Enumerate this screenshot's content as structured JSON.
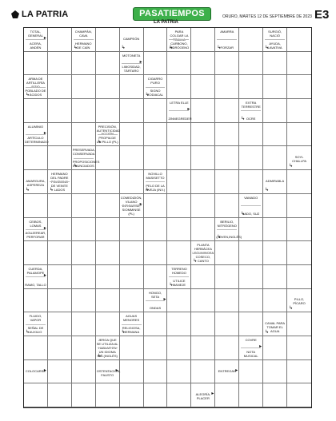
{
  "header": {
    "logo": "LA PATRIA",
    "title": "PASATIEMPOS",
    "title_sub": "LA PATRIA",
    "date": "ORURO, MARTES 12 DE SEPTIEMBRE DE 2023",
    "section": "E3"
  },
  "crossword": {
    "cols": 12,
    "rows": 16,
    "clues": [
      {
        "r": 0,
        "c": 0,
        "top": "TOTAL, GENERAL",
        "bot": "ACERA, ANDÉN",
        "arrow": "right"
      },
      {
        "r": 0,
        "c": 2,
        "top": "CHAMPÁN, CAVA",
        "bot": "HERMANO DE CAÍN",
        "arrow": "down"
      },
      {
        "r": 0,
        "c": 4,
        "top": "CAMPEÓN",
        "bot": "",
        "arrow": "down"
      },
      {
        "r": 0,
        "c": 6,
        "top": "PARA COLGAR LA TOALLA",
        "bot": "CARBONO, HIDRÓGENO",
        "arrow": "down"
      },
      {
        "r": 0,
        "c": 8,
        "top": "AMARRA",
        "bot": "FORZAR",
        "arrow": "down"
      },
      {
        "r": 0,
        "c": 10,
        "top": "SURGIÓ, NACIÓ",
        "bot": "AYUDA, LAVATIVA",
        "arrow": "down"
      },
      {
        "r": 1,
        "c": 4,
        "top": "MOTONETA",
        "bot": "LIMOSIDAD, TÁRTARO",
        "arrow": "right"
      },
      {
        "r": 2,
        "c": 0,
        "top": "ARMA DE ARTILLERÍA",
        "bot": "SITIO POBLADO DE ÁCIDOS",
        "arrow": "down"
      },
      {
        "r": 2,
        "c": 5,
        "top": "CIGARRO PURO",
        "bot": "SIGNO ZODIACAL",
        "arrow": "down"
      },
      {
        "r": 3,
        "c": 6,
        "top": "LETRA ELLE",
        "bot": "ZINNEGREDER",
        "arrow": "right"
      },
      {
        "r": 3,
        "c": 9,
        "top": "EXTRA TERRESTRE",
        "bot": "OCRE",
        "arrow": "down"
      },
      {
        "r": 4,
        "c": 0,
        "top": "ALUMINIO",
        "bot": "ARTÍCULO DETERMINADO",
        "arrow": "right"
      },
      {
        "r": 4,
        "c": 3,
        "top": "PRECISIÓN, AUTENTICIDAD",
        "bot": "ACCIÓN PROPIA DE UN PILLO (PL)",
        "arrow": "down"
      },
      {
        "r": 5,
        "c": 2,
        "top": "PRESERVADA, CONSERVADA",
        "bot": "PROPOSICIONES ENUNCIADOS",
        "arrow": "down"
      },
      {
        "r": 5,
        "c": 11,
        "top": "SOYL CHALLPA",
        "bot": "",
        "arrow": "down"
      },
      {
        "r": 6,
        "c": 0,
        "top": "AMARGURA, ASPEREZA",
        "bot": "",
        "arrow": "down"
      },
      {
        "r": 6,
        "c": 1,
        "top": "HERMANO DEL PADRE",
        "bot": "POLÍGONO DE VEINTE LADOS",
        "arrow": "down"
      },
      {
        "r": 6,
        "c": 5,
        "top": "NOVILLO MASISETTO",
        "bot": "PELO DE LA OVEJA (INV.)",
        "arrow": "down"
      },
      {
        "r": 6,
        "c": 10,
        "top": "ADMIRABLA",
        "bot": "",
        "arrow": "down"
      },
      {
        "r": 7,
        "c": 4,
        "top": "COMEDIZIÓN, VILANO",
        "bot": "DIFIGARSE, SIOMMINSE (PL)",
        "arrow": "right"
      },
      {
        "r": 7,
        "c": 9,
        "top": "VAMADO",
        "bot": "LADO, SUZ",
        "arrow": "down"
      },
      {
        "r": 8,
        "c": 0,
        "top": "CEIBOS, LOMAS",
        "bot": "AGUJEREAR, PERFORAR",
        "arrow": "right"
      },
      {
        "r": 8,
        "c": 8,
        "top": "BERILIO, NITRÓGENO",
        "bot": "(JOVEN,INGLÉS)",
        "arrow": "down"
      },
      {
        "r": 9,
        "c": 7,
        "top": "PLANTA HERBÁCEA LEGUMINOSA",
        "bot": "COSECO, CANTO",
        "arrow": "down"
      },
      {
        "r": 10,
        "c": 0,
        "top": "CUERDA, PALAMOPE",
        "bot": "RAMO, TALLO",
        "arrow": "right"
      },
      {
        "r": 10,
        "c": 6,
        "top": "TERRENO HÚMEDO",
        "bot": "UTILICE MANEJE",
        "arrow": "down"
      },
      {
        "r": 11,
        "c": 5,
        "top": "HONGO, SETA",
        "bot": "ONDAS",
        "arrow": "right"
      },
      {
        "r": 11,
        "c": 11,
        "top": "PILLO, PÍCARO",
        "bot": "",
        "arrow": "down"
      },
      {
        "r": 12,
        "c": 0,
        "top": "FLUIDO, VAPOR",
        "bot": "SEÑAL DE AUXILIO",
        "arrow": "down"
      },
      {
        "r": 12,
        "c": 4,
        "top": "AGUAS MENORES",
        "bot": "RELIGIOSA, HERMANA",
        "arrow": "down"
      },
      {
        "r": 12,
        "c": 10,
        "top": "CANAL PARA TOMAR EL AGUA",
        "bot": "",
        "arrow": "down"
      },
      {
        "r": 13,
        "c": 3,
        "top": "JERGA QUE SE UTILIZA AL HABLAR EN UN IDIOMA",
        "bot": "NIÑ (INGLÉS)",
        "arrow": "down"
      },
      {
        "r": 13,
        "c": 9,
        "top": "COVRE",
        "bot": "NOTA MUSICAL",
        "arrow": "right"
      },
      {
        "r": 14,
        "c": 0,
        "top": "COLOCARSE",
        "bot": "",
        "arrow": "right"
      },
      {
        "r": 14,
        "c": 3,
        "top": "OSTENTACIÓN, FAUSTO",
        "bot": "",
        "arrow": "right"
      },
      {
        "r": 14,
        "c": 8,
        "top": "ENTREGAN",
        "bot": "",
        "arrow": "right"
      },
      {
        "r": 15,
        "c": 7,
        "top": "ALEGRÍA, PLACER",
        "bot": "",
        "arrow": "right"
      }
    ]
  }
}
